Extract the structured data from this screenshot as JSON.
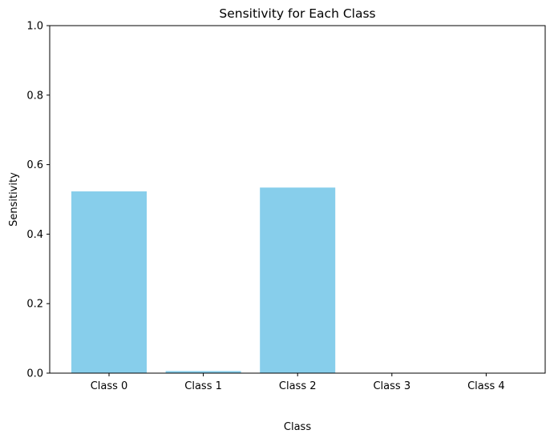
{
  "chart_data": {
    "type": "bar",
    "title": "Sensitivity for Each Class",
    "xlabel": "Class",
    "ylabel": "Sensitivity",
    "categories": [
      "Class 0",
      "Class 1",
      "Class 2",
      "Class 3",
      "Class 4"
    ],
    "values": [
      0.523,
      0.006,
      0.534,
      0.0,
      0.0
    ],
    "ylim": [
      0,
      1
    ],
    "yticks": [
      "0.0",
      "0.2",
      "0.4",
      "0.6",
      "0.8",
      "1.0"
    ],
    "grid": false,
    "bar_color": "#87ceeb"
  }
}
